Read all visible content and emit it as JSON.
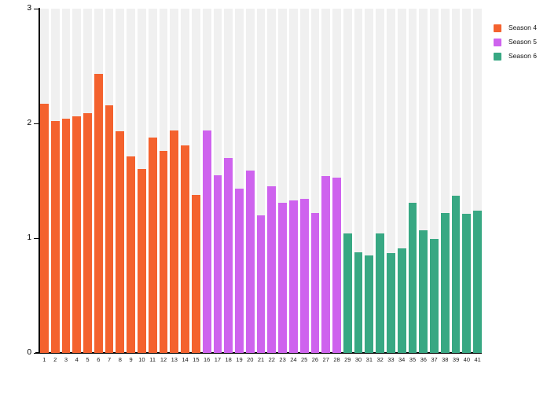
{
  "chart_data": {
    "type": "bar",
    "title": "",
    "xlabel": "",
    "ylabel": "",
    "ylim": [
      0,
      3
    ],
    "yticks": [
      "0",
      "1",
      "2",
      "3"
    ],
    "grid": "per-bar background bands",
    "legend_position": "top-right",
    "background_band_color": "#f0f0f0",
    "axis_color": "#000000",
    "series": [
      {
        "name": "Season 4",
        "color": "#F4622E",
        "x_labels": [
          "1",
          "2",
          "3",
          "4",
          "5",
          "6",
          "7",
          "8",
          "9",
          "10",
          "11",
          "12",
          "13",
          "14",
          "15"
        ],
        "values": [
          2.17,
          2.02,
          2.04,
          2.06,
          2.09,
          2.43,
          2.16,
          1.93,
          1.71,
          1.6,
          1.88,
          1.76,
          1.94,
          1.81,
          1.38
        ]
      },
      {
        "name": "Season 5",
        "color": "#CE63EE",
        "x_labels": [
          "16",
          "17",
          "18",
          "19",
          "20",
          "21",
          "22",
          "23",
          "24",
          "25",
          "26",
          "27",
          "28"
        ],
        "values": [
          1.94,
          1.55,
          1.7,
          1.43,
          1.59,
          1.2,
          1.45,
          1.31,
          1.33,
          1.34,
          1.22,
          1.54,
          1.53
        ]
      },
      {
        "name": "Season 6",
        "color": "#38A883",
        "x_labels": [
          "29",
          "30",
          "31",
          "32",
          "33",
          "34",
          "35",
          "36",
          "37",
          "38",
          "39",
          "40",
          "41"
        ],
        "values": [
          1.04,
          0.88,
          0.85,
          1.04,
          0.87,
          0.91,
          1.31,
          1.07,
          0.99,
          1.22,
          1.37,
          1.21,
          1.24
        ]
      }
    ]
  },
  "legend": {
    "items": [
      {
        "label": "Season 4",
        "color": "#F4622E"
      },
      {
        "label": "Season 5",
        "color": "#CE63EE"
      },
      {
        "label": "Season 6",
        "color": "#38A883"
      }
    ]
  }
}
